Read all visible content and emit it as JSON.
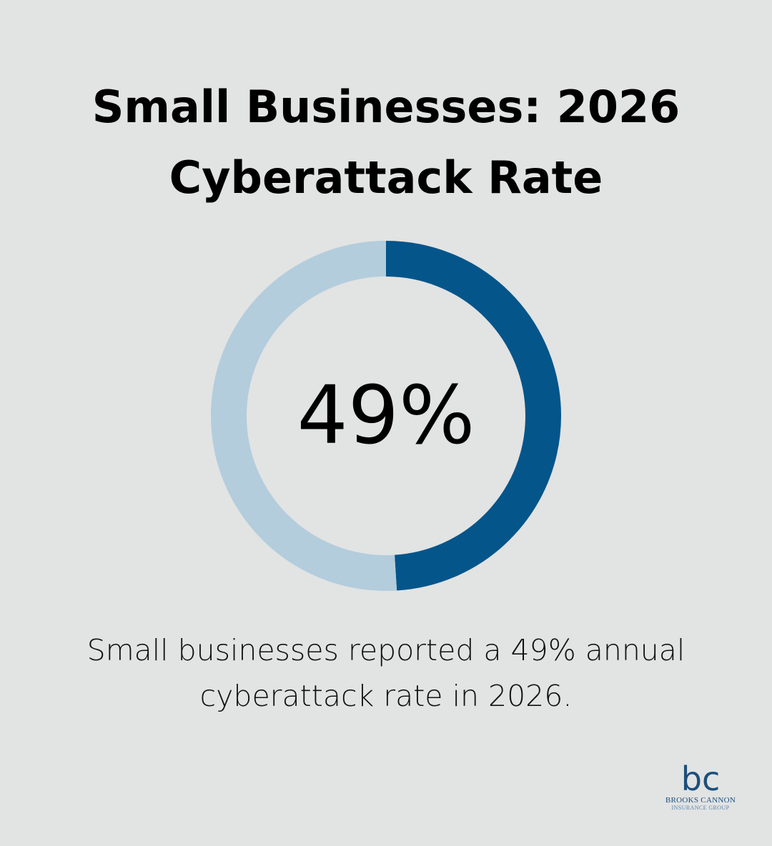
{
  "title_lines": [
    "Small Businesses: 2026",
    "Cyberattack Rate"
  ],
  "chart_data": {
    "type": "pie",
    "variant": "donut",
    "center_label": "49%",
    "slices": [
      {
        "value": 49,
        "color": "#03558a"
      },
      {
        "value": 51,
        "color": "#b3cddc"
      }
    ]
  },
  "caption_lines": [
    "Small businesses reported a 49% annual",
    "cyberattack rate in 2026."
  ],
  "logo": {
    "monogram": "bc",
    "name": "BROOKS CANNON",
    "sub": "INSURANCE GROUP"
  },
  "colors": {
    "background": "#e2e3e3",
    "accent": "#03558a",
    "track": "#b3cddc"
  }
}
